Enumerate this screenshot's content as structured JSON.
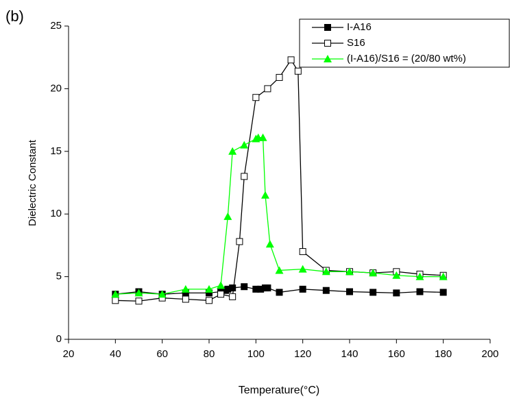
{
  "chart_data": {
    "type": "line",
    "panel_label": "(b)",
    "x_label": "Temperature(°C)",
    "y_label": "Dielectric Constant",
    "xlim": [
      20,
      200
    ],
    "xticks": [
      20,
      40,
      60,
      80,
      100,
      120,
      140,
      160,
      180,
      200
    ],
    "ylim": [
      0,
      25
    ],
    "yticks": [
      0,
      5,
      10,
      15,
      20,
      25
    ],
    "legend": "upper right",
    "series": [
      {
        "name": "I-A16",
        "color": "#000000",
        "marker": "filled-square",
        "x": [
          40,
          50,
          60,
          70,
          80,
          85,
          87,
          88,
          90,
          95,
          100,
          102,
          104,
          105,
          110,
          120,
          130,
          140,
          150,
          160,
          170,
          180
        ],
        "values": [
          3.6,
          3.8,
          3.6,
          3.7,
          3.7,
          3.8,
          3.9,
          4.0,
          4.1,
          4.2,
          4.0,
          4.0,
          4.1,
          4.1,
          3.75,
          4.0,
          3.9,
          3.8,
          3.75,
          3.7,
          3.8,
          3.75
        ]
      },
      {
        "name": "S16",
        "color": "#000000",
        "marker": "open-square",
        "x": [
          40,
          50,
          60,
          70,
          80,
          85,
          90,
          93,
          95,
          100,
          105,
          110,
          115,
          118,
          120,
          130,
          140,
          150,
          160,
          170,
          180
        ],
        "values": [
          3.1,
          3.05,
          3.3,
          3.2,
          3.1,
          3.6,
          3.4,
          7.8,
          13.0,
          19.3,
          20.0,
          20.9,
          22.3,
          21.4,
          7.0,
          5.5,
          5.4,
          5.3,
          5.4,
          5.2,
          5.1
        ]
      },
      {
        "name": "(I-A16)/S16 = (20/80 wt%)",
        "color": "#00ff00",
        "marker": "triangle",
        "x": [
          40,
          50,
          60,
          70,
          80,
          85,
          88,
          90,
          95,
          100,
          101,
          103,
          104,
          106,
          110,
          120,
          130,
          140,
          150,
          160,
          170,
          180
        ],
        "values": [
          3.6,
          3.7,
          3.6,
          4.0,
          4.0,
          4.3,
          9.8,
          15.0,
          15.5,
          16.0,
          16.1,
          16.1,
          11.5,
          7.6,
          5.5,
          5.6,
          5.4,
          5.4,
          5.3,
          5.1,
          5.0,
          5.0
        ]
      }
    ]
  }
}
